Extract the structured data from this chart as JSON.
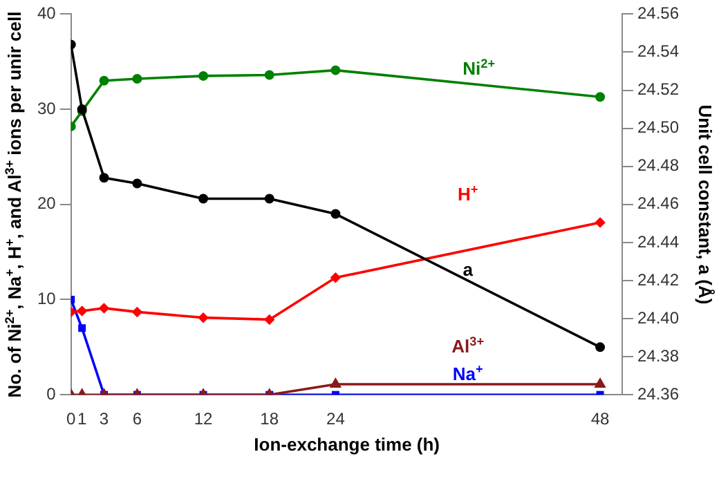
{
  "chart_data": {
    "type": "line",
    "xlabel": "Ion-exchange time (h)",
    "ylabel": "No. of Ni$^{2+}$, Na$^{+}$, H$^{+}$, and Al$^{3+}$ ions per unir cell",
    "y2label": "Unit cell constant, a (Å)",
    "x": [
      0,
      1,
      3,
      6,
      12,
      18,
      24,
      48
    ],
    "xlim": [
      0,
      50
    ],
    "xticks": [
      0,
      1,
      3,
      6,
      12,
      18,
      24,
      48
    ],
    "ylim": [
      0,
      40
    ],
    "yticks": [
      0,
      10,
      20,
      30,
      40
    ],
    "y2lim": [
      24.36,
      24.56
    ],
    "y2ticks": [
      {
        "value": 24.36,
        "label": "24.36"
      },
      {
        "value": 24.38,
        "label": "24.38"
      },
      {
        "value": 24.4,
        "label": "24.40"
      },
      {
        "value": 24.42,
        "label": "24.42"
      },
      {
        "value": 24.44,
        "label": "24.44"
      },
      {
        "value": 24.46,
        "label": "24.46"
      },
      {
        "value": 24.48,
        "label": "24.48"
      },
      {
        "value": 24.5,
        "label": "24.50"
      },
      {
        "value": 24.52,
        "label": "24.52"
      },
      {
        "value": 24.54,
        "label": "24.54"
      },
      {
        "value": 24.56,
        "label": "24.56"
      }
    ],
    "grid": false,
    "legend": false,
    "line_style": "solid",
    "series": [
      {
        "name": "Ni$^{2+}$",
        "color": "#008000",
        "marker": "circle",
        "values": [
          28.2,
          29.8,
          33.0,
          33.2,
          33.5,
          33.6,
          34.1,
          31.3
        ]
      },
      {
        "name": "a",
        "color": "#000000",
        "marker": "circle",
        "axis": "y2",
        "values": [
          24.544,
          24.51,
          24.474,
          24.471,
          24.463,
          24.463,
          24.455,
          24.385
        ]
      },
      {
        "name": "H$^{+}$",
        "color": "#ff0000",
        "marker": "diamond",
        "values": [
          8.7,
          8.8,
          9.1,
          8.7,
          8.1,
          7.9,
          12.3,
          18.1
        ]
      },
      {
        "name": "Al$^{3+}$",
        "color": "#8b1a1a",
        "marker": "triangle",
        "values": [
          0,
          0,
          0,
          0,
          0,
          0,
          1.1,
          1.1
        ]
      },
      {
        "name": "Na$^{+}$",
        "color": "#0000ff",
        "marker": "square",
        "values": [
          10,
          7,
          0,
          0,
          0,
          0,
          0,
          0
        ]
      }
    ]
  }
}
